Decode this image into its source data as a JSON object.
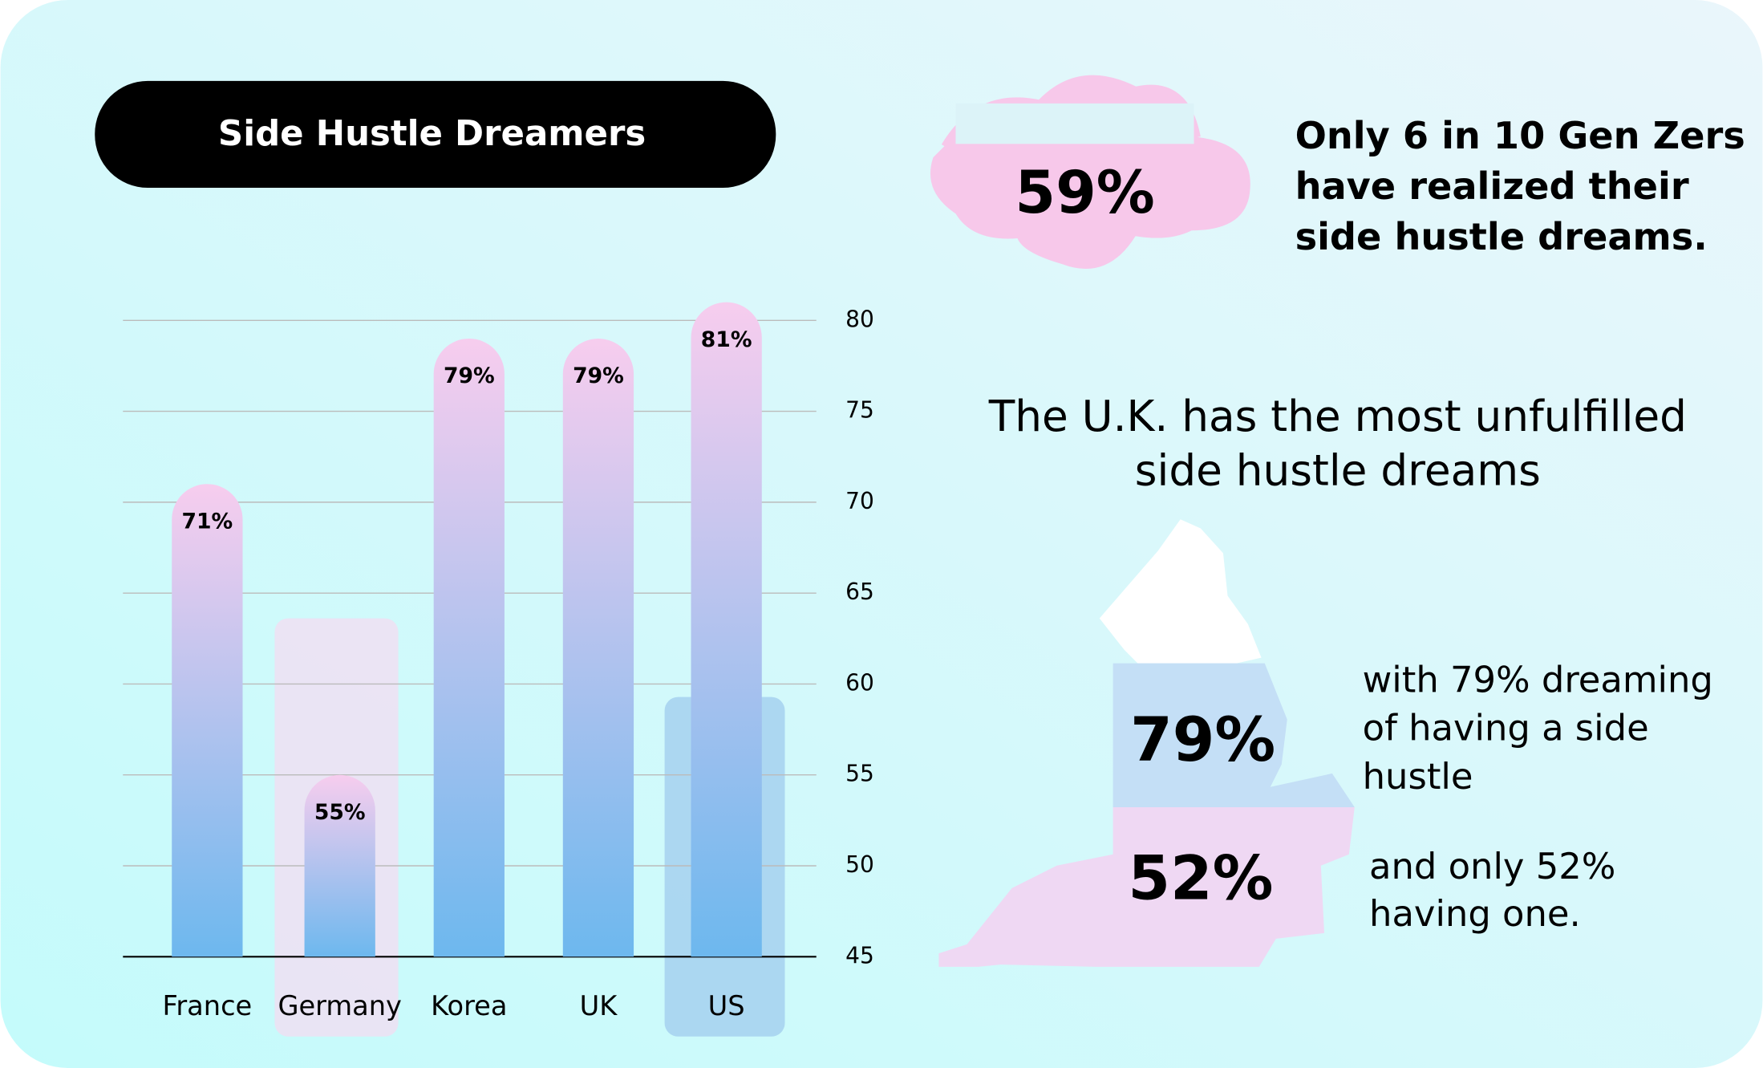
{
  "chart_data": {
    "type": "bar",
    "title": "Side Hustle Dreamers",
    "categories": [
      "France",
      "Germany",
      "Korea",
      "UK",
      "US"
    ],
    "values": [
      71,
      55,
      79,
      79,
      81
    ],
    "value_labels": [
      "71%",
      "55%",
      "79%",
      "79%",
      "81%"
    ],
    "ylim": [
      45,
      80
    ],
    "yticks": [
      45,
      50,
      55,
      60,
      65,
      70,
      75,
      80
    ],
    "grid": true,
    "color_top": "#f7cdee",
    "color_bottom": "#6db8ee"
  },
  "cloud": {
    "stat": "59%",
    "lines": [
      "Only 6 in 10 Gen Zers",
      "have realized their",
      "side hustle dreams."
    ]
  },
  "uk": {
    "headline": [
      "The U.K. has the most unfulfilled",
      "side hustle dreams"
    ],
    "dreaming_stat": "79%",
    "dreaming_lines": [
      "with 79% dreaming",
      "of having a side",
      "hustle"
    ],
    "having_stat": "52%",
    "having_lines": [
      "and only 52%",
      "having one."
    ]
  }
}
